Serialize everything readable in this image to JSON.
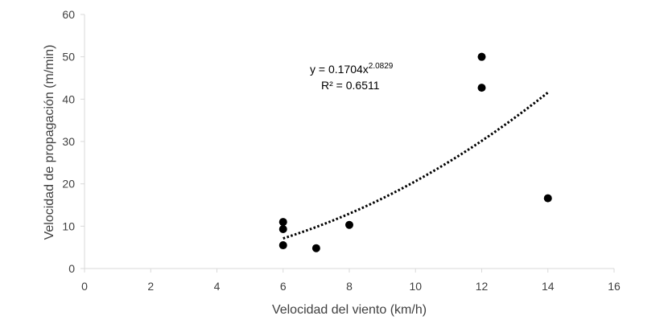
{
  "chart_data": {
    "type": "scatter",
    "xlabel": "Velocidad del viento (km/h)",
    "ylabel": "Velocidad de propagación (m/min)",
    "xlim": [
      0,
      16
    ],
    "ylim": [
      0,
      60
    ],
    "xticks": [
      0,
      2,
      4,
      6,
      8,
      10,
      12,
      14,
      16
    ],
    "yticks": [
      0,
      10,
      20,
      30,
      40,
      50,
      60
    ],
    "grid": false,
    "legend": "none",
    "points": [
      {
        "x": 6,
        "y": 11.0
      },
      {
        "x": 6,
        "y": 9.3
      },
      {
        "x": 6,
        "y": 5.5
      },
      {
        "x": 7,
        "y": 4.8
      },
      {
        "x": 8,
        "y": 10.3
      },
      {
        "x": 12,
        "y": 50.0
      },
      {
        "x": 12,
        "y": 42.7
      },
      {
        "x": 14,
        "y": 16.6
      }
    ],
    "trendline": {
      "type": "power",
      "coefficient": 0.1704,
      "exponent": 2.0829,
      "x_range": [
        6,
        14
      ],
      "style": "dotted"
    },
    "annotation": {
      "equation_base": "y = 0.1704x",
      "equation_exponent": "2.0829",
      "r_squared": "R² = 0.6511"
    },
    "marker_color": "#000000",
    "axis_color": "#d9d9d9",
    "text_color": "#404040"
  }
}
